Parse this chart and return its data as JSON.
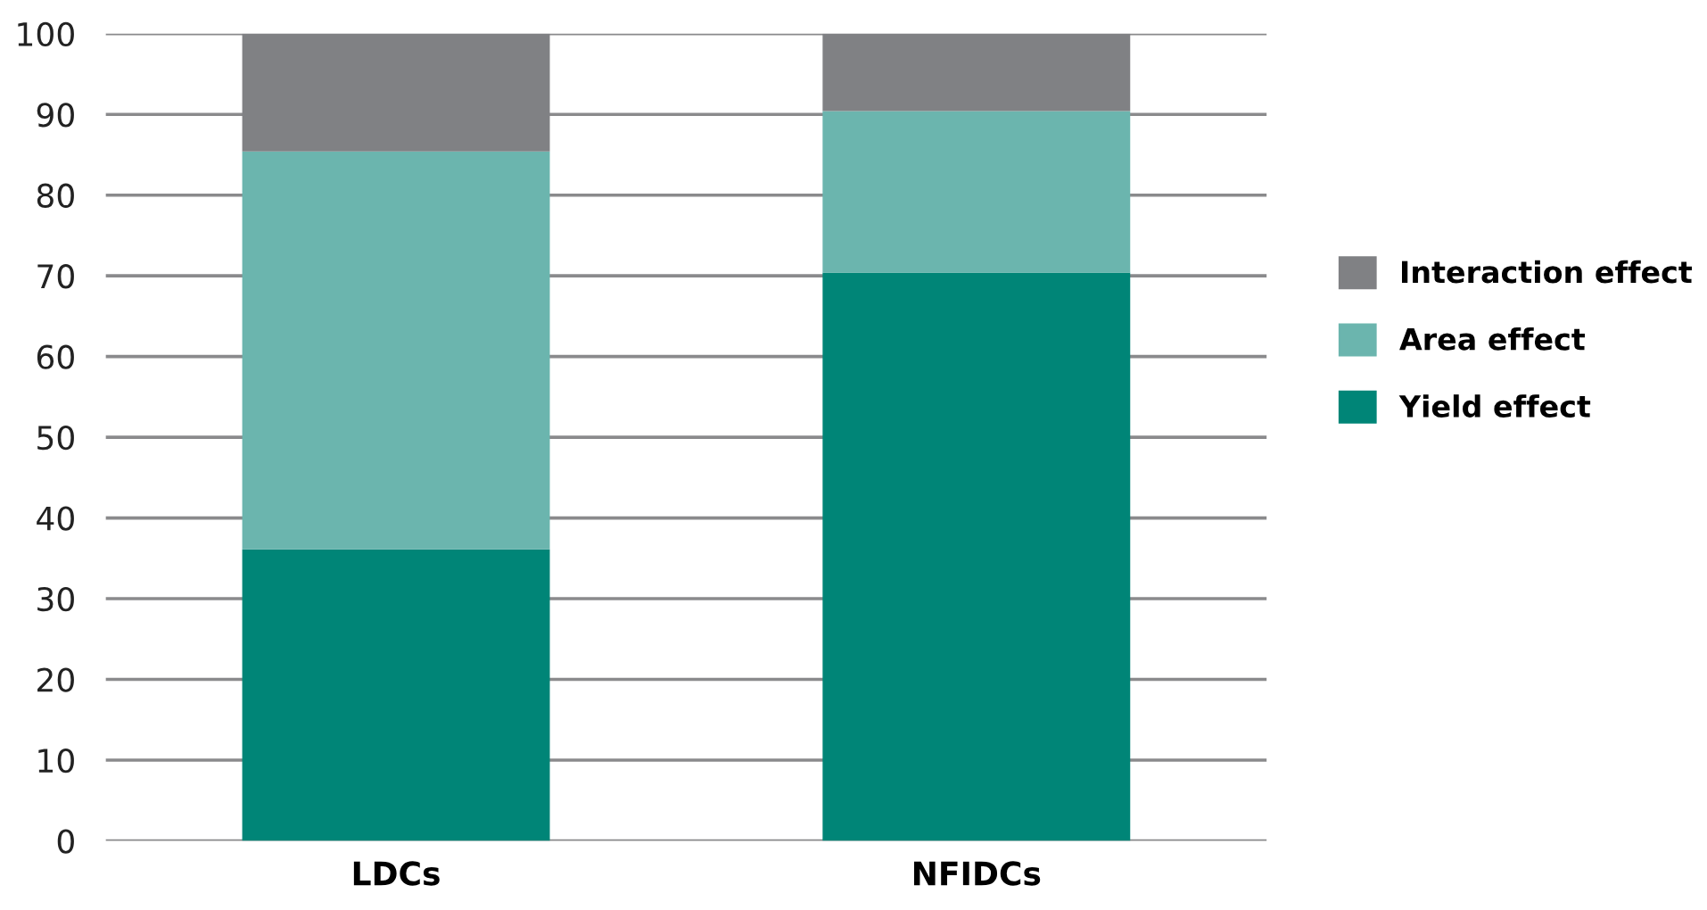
{
  "chart_data": {
    "type": "bar",
    "stacked": true,
    "categories": [
      "LDCs",
      "NFIDCs"
    ],
    "series": [
      {
        "name": "Yield effect",
        "color": "#008577",
        "values": [
          36.1,
          70.4
        ]
      },
      {
        "name": "Area effect",
        "color": "#6bb5ae",
        "values": [
          49.3,
          20.0
        ]
      },
      {
        "name": "Interaction effect",
        "color": "#808184",
        "values": [
          14.6,
          9.6
        ]
      }
    ],
    "ylim": [
      0,
      100
    ],
    "yticks": [
      0,
      10,
      20,
      30,
      40,
      50,
      60,
      70,
      80,
      90,
      100
    ],
    "grid": "y",
    "legend": "right"
  }
}
